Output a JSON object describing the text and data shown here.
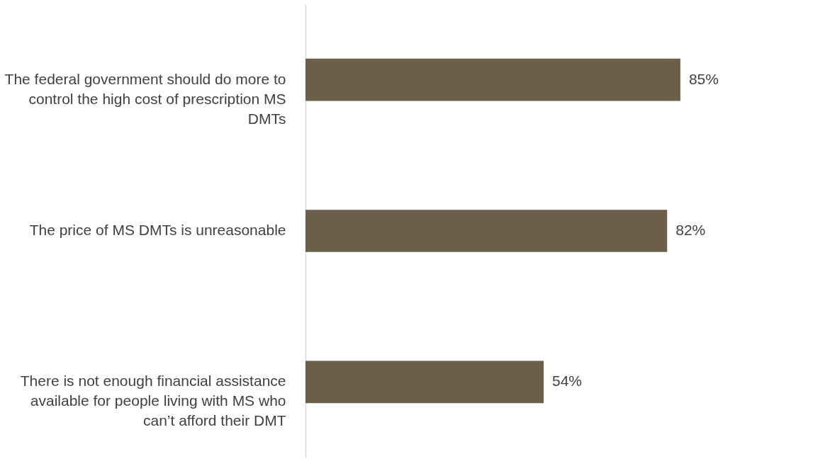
{
  "chart_data": {
    "type": "bar",
    "orientation": "horizontal",
    "tick_labels": "y",
    "categories": [
      "The federal government should do more to control the high cost of prescription MS DMTs",
      "The price of MS DMTs is unreasonable",
      "There is not enough financial assistance available for people living with MS who can’t afford their DMT"
    ],
    "values": [
      85,
      82,
      54
    ],
    "value_labels": [
      "85%",
      "82%",
      "54%"
    ],
    "color": "#6b5e4a"
  }
}
